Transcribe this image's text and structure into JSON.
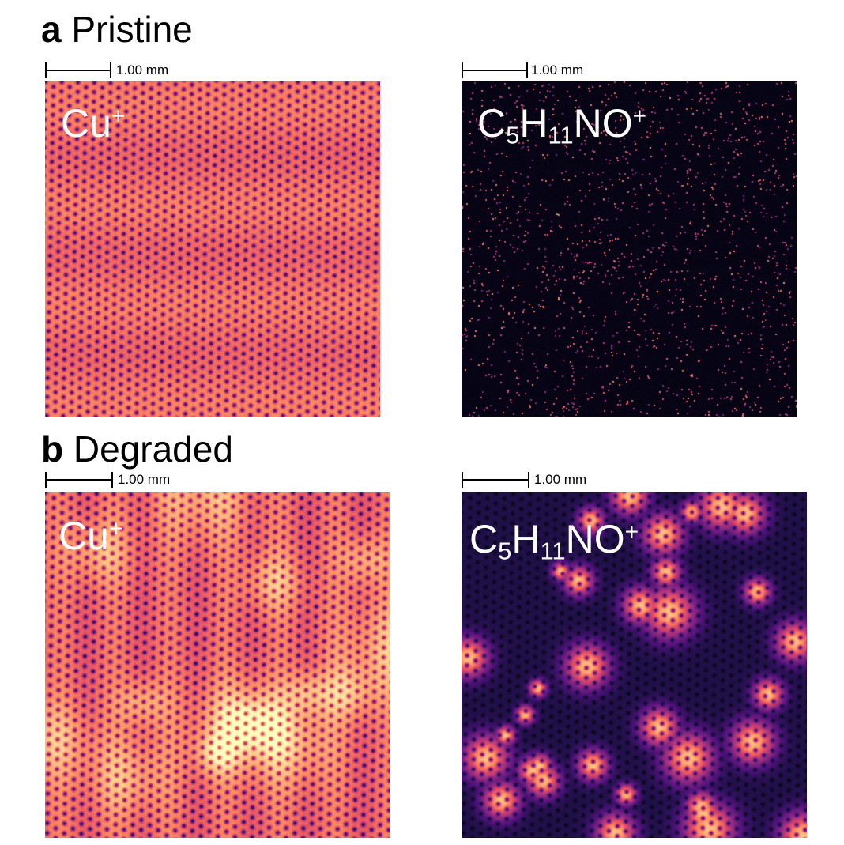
{
  "figure": {
    "panels": [
      {
        "letter": "a",
        "condition": "Pristine",
        "scale_label": "1.00 mm",
        "maps": [
          {
            "ion": {
              "base": "Cu",
              "charge": "+"
            },
            "colormap": "magma",
            "pattern": "uniform-hex"
          },
          {
            "ion": {
              "parts": [
                "C",
                "5",
                "H",
                "11",
                "NO"
              ],
              "charge": "+"
            },
            "colormap": "magma",
            "pattern": "sparse-speckle"
          }
        ]
      },
      {
        "letter": "b",
        "condition": "Degraded",
        "scale_label": "1.00 mm",
        "maps": [
          {
            "ion": {
              "base": "Cu",
              "charge": "+"
            },
            "colormap": "magma",
            "pattern": "uniform-hex-bright-patches"
          },
          {
            "ion": {
              "parts": [
                "C",
                "5",
                "H",
                "11",
                "NO"
              ],
              "charge": "+"
            },
            "colormap": "magma",
            "pattern": "clustered-hex-islands"
          }
        ]
      }
    ],
    "colors": {
      "label": "#ffffff",
      "text": "#000000"
    }
  }
}
